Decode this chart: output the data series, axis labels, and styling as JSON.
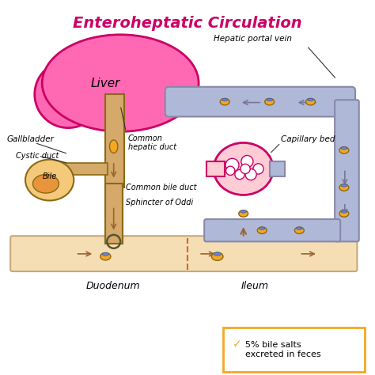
{
  "title": "Enteroheptatic Circulation",
  "title_color": "#cc0066",
  "title_fontsize": 14,
  "bg_color": "#ffffff",
  "liver_color": "#ff69b4",
  "liver_outline": "#cc0066",
  "gallbladder_color": "#f5c97a",
  "gallbladder_outline": "#8B6914",
  "duct_color": "#d4a96a",
  "duct_outline": "#8B6914",
  "intestine_color": "#f5deb3",
  "intestine_outline": "#c8a87a",
  "vein_color": "#b0b8d8",
  "vein_outline": "#8888aa",
  "capillary_color": "#ffb6c1",
  "capillary_outline": "#cc0066",
  "arrow_color": "#996633",
  "bile_salt_color": "#f5a623",
  "bile_salt_outline": "#8B6914",
  "text_color": "#000000",
  "annotation_color": "#333333",
  "legend_border": "#f5a623",
  "labels": {
    "liver": "Liver",
    "gallbladder": "Gallbladder",
    "cystic_duct": "Cystic duct",
    "common_hepatic_duct": "Common\nhepatic duct",
    "common_bile_duct": "Common bile duct",
    "sphincter": "Sphincter of Oddi",
    "bile": "Bile",
    "duodenum": "Duodenum",
    "ileum": "Ileum",
    "hepatic_portal_vein": "Hepatic portal vein",
    "capillary_bed": "Capillary bed",
    "legend_text": "5% bile salts\nexcreted in feces"
  }
}
